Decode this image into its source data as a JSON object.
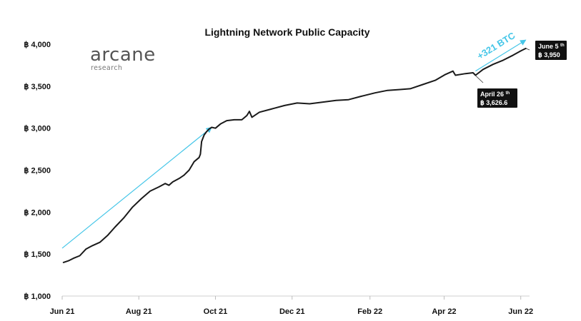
{
  "chart_data": {
    "type": "line",
    "title": "Lightning Network Public Capacity",
    "ylim": [
      1000,
      4000
    ],
    "y_ticks": [
      1000,
      1500,
      2000,
      2500,
      3000,
      3500,
      4000
    ],
    "y_tick_labels": [
      "฿ 1,000",
      "฿ 1,500",
      "฿ 2,000",
      "฿ 2,500",
      "฿ 3,000",
      "฿ 3,500",
      "฿ 4,000"
    ],
    "xlim": [
      "2021-06-01",
      "2022-06-08"
    ],
    "x_ticks": [
      "2021-06-01",
      "2021-08-01",
      "2021-10-01",
      "2021-12-01",
      "2022-02-01",
      "2022-04-01",
      "2022-06-01"
    ],
    "x_tick_labels": [
      "Jun 21",
      "Aug 21",
      "Oct 21",
      "Dec 21",
      "Feb 22",
      "Apr 22",
      "Jun 22"
    ],
    "grid": false,
    "line_color": "#1a1a1a",
    "accent_color": "#45c6e8",
    "series": [
      {
        "x": [
          "2021-06-02",
          "2021-06-06",
          "2021-06-10",
          "2021-06-15",
          "2021-06-20",
          "2021-06-25",
          "2021-07-01",
          "2021-07-07",
          "2021-07-13",
          "2021-07-20",
          "2021-07-27",
          "2021-08-03",
          "2021-08-10",
          "2021-08-17",
          "2021-08-22",
          "2021-08-25",
          "2021-08-28",
          "2021-09-02",
          "2021-09-06",
          "2021-09-10",
          "2021-09-14",
          "2021-09-18",
          "2021-09-19",
          "2021-09-20",
          "2021-09-22",
          "2021-09-24",
          "2021-09-26",
          "2021-09-28",
          "2021-10-01",
          "2021-10-05",
          "2021-10-10",
          "2021-10-16",
          "2021-10-22",
          "2021-10-26",
          "2021-10-28",
          "2021-10-30",
          "2021-11-05",
          "2021-11-15",
          "2021-11-25",
          "2021-12-05",
          "2021-12-15",
          "2021-12-25",
          "2022-01-05",
          "2022-01-15",
          "2022-01-25",
          "2022-02-05",
          "2022-02-15",
          "2022-02-25",
          "2022-03-05",
          "2022-03-15",
          "2022-03-25",
          "2022-04-02",
          "2022-04-08",
          "2022-04-10",
          "2022-04-18",
          "2022-04-24",
          "2022-04-26",
          "2022-05-02",
          "2022-05-10",
          "2022-05-18",
          "2022-05-26",
          "2022-06-01",
          "2022-06-05"
        ],
        "values": [
          1400,
          1420,
          1450,
          1480,
          1560,
          1600,
          1640,
          1720,
          1820,
          1930,
          2060,
          2160,
          2250,
          2300,
          2340,
          2320,
          2360,
          2400,
          2440,
          2500,
          2600,
          2650,
          2690,
          2840,
          2920,
          2960,
          2990,
          3010,
          3000,
          3050,
          3090,
          3100,
          3100,
          3150,
          3200,
          3130,
          3190,
          3230,
          3270,
          3300,
          3290,
          3310,
          3330,
          3340,
          3380,
          3420,
          3450,
          3460,
          3470,
          3520,
          3570,
          3640,
          3680,
          3630,
          3650,
          3660,
          3630,
          3700,
          3760,
          3810,
          3870,
          3920,
          3950
        ]
      }
    ],
    "annotations": [
      {
        "label": "April 26",
        "label_sup": "th",
        "value_text": "฿ 3,626.6",
        "x": "2022-04-26",
        "y": 3626.6
      },
      {
        "label": "June 5",
        "label_sup": "th",
        "value_text": "฿ 3,950",
        "x": "2022-06-05",
        "y": 3950
      }
    ],
    "growth_label": "+321 BTC",
    "trend_arrows": [
      {
        "x1": "2021-06-01",
        "y1": 1570,
        "x2": "2021-09-28",
        "y2": 3010
      },
      {
        "x1": "2022-04-26",
        "y1": 3680,
        "x2": "2022-06-05",
        "y2": 4050
      }
    ]
  },
  "logo": {
    "name": "arcane",
    "tagline": "research"
  }
}
